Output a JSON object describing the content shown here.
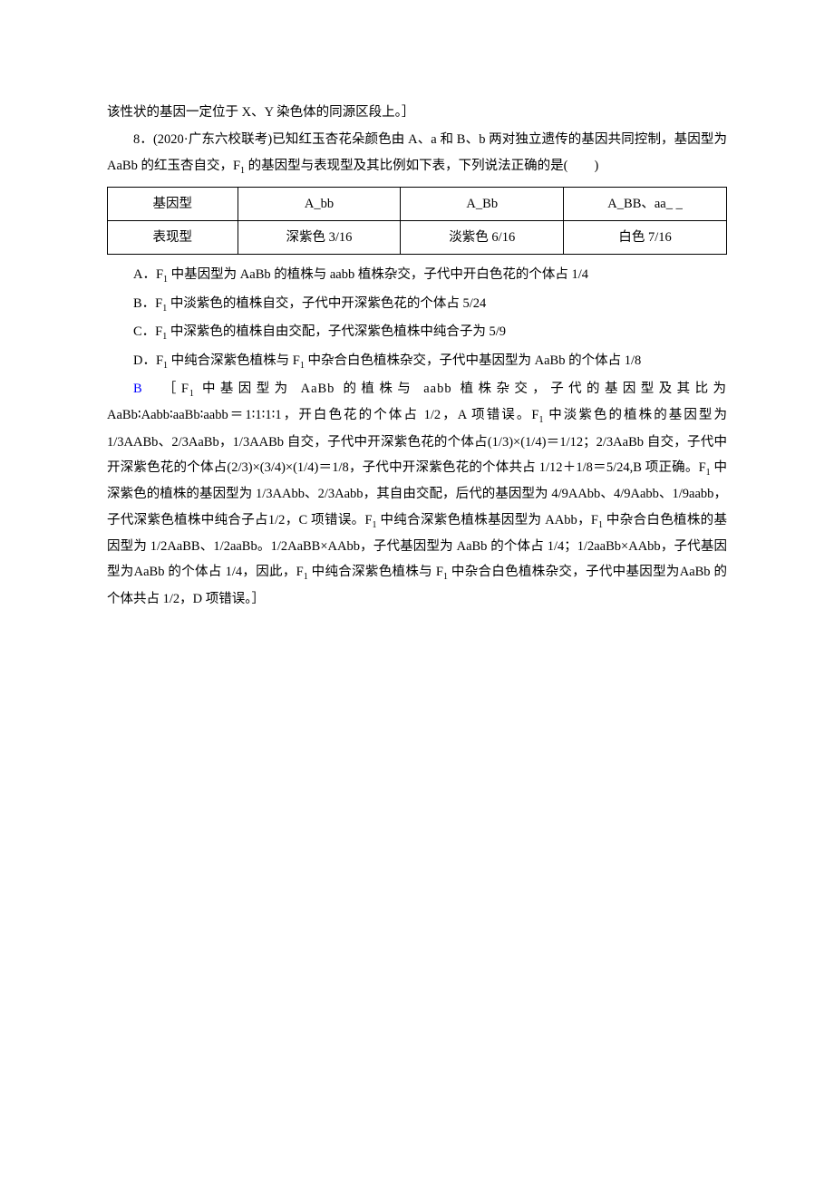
{
  "line1": "该性状的基因一定位于 X、Y 染色体的同源区段上。］",
  "question": {
    "number": "8．",
    "source": "(2020·广东六校联考)",
    "text_part1": "已知红玉杏花朵颜色由 A、a 和 B、b 两对独立遗传的基因共同控制，基因型为 AaBb 的红玉杏自交，F",
    "sub1": "1",
    "text_part2": " 的基因型与表现型及其比例如下表，下列说法正确的是(　　)"
  },
  "table": {
    "rows": [
      [
        "基因型",
        "A_bb",
        "A_Bb",
        "A_BB、aa_ _"
      ],
      [
        "表现型",
        "深紫色 3/16",
        "淡紫色 6/16",
        "白色 7/16"
      ]
    ]
  },
  "options": {
    "A": {
      "label": "A．F",
      "sub": "1",
      "text": " 中基因型为 AaBb 的植株与 aabb 植株杂交，子代中开白色花的个体占 1/4"
    },
    "B": {
      "label": "B．F",
      "sub": "1",
      "text": " 中淡紫色的植株自交，子代中开深紫色花的个体占 5/24"
    },
    "C": {
      "label": "C．F",
      "sub": "1",
      "text": " 中深紫色的植株自由交配，子代深紫色植株中纯合子为 5/9"
    },
    "D": {
      "label": "D．F",
      "sub": "1",
      "text1": " 中纯合深紫色植株与 F",
      "sub2": "1",
      "text2": " 中杂合白色植株杂交，子代中基因型为 AaBb 的个体占 1/8"
    }
  },
  "answer": {
    "letter": "B",
    "p1a": "［F",
    "p1b": " 中基因型为 AaBb 的植株与 aabb 植株杂交，子代的基因型及其比为",
    "p2": "AaBb∶Aabb∶aaBb∶aabb＝1∶1∶1∶1，开白色花的个体占 1/2，A 项错误。F",
    "p2b": " 中淡紫色的植株的基因型为 1/3AABb、2/3AaBb，1/3AABb 自交，子代中开深紫色花的个体占(1/3)×(1/4)＝1/12；2/3AaBb 自交，子代中开深紫色花的个体占(2/3)×(3/4)×(1/4)＝1/8，子代中开深紫色花的个体共占 1/12＋1/8＝5/24,B 项正确。F",
    "p2c": " 中深紫色的植株的基因型为 1/3AAbb、2/3Aabb，其自由交配，后代的基因型为 4/9AAbb、4/9Aabb、1/9aabb，子代深紫色植株中纯合子占1/2，C 项错误。F",
    "p2d": " 中纯合深紫色植株基因型为 AAbb，F",
    "p2e": " 中杂合白色植株的基因型为 1/2AaBB、1/2aaBb。1/2AaBB×AAbb，子代基因型为 AaBb 的个体占 1/4；1/2aaBb×AAbb，子代基因型为AaBb 的个体占 1/4，因此，F",
    "p2f": " 中纯合深紫色植株与 F",
    "p2g": " 中杂合白色植株杂交，子代中基因型为AaBb 的个体共占 1/2，D 项错误。］"
  }
}
